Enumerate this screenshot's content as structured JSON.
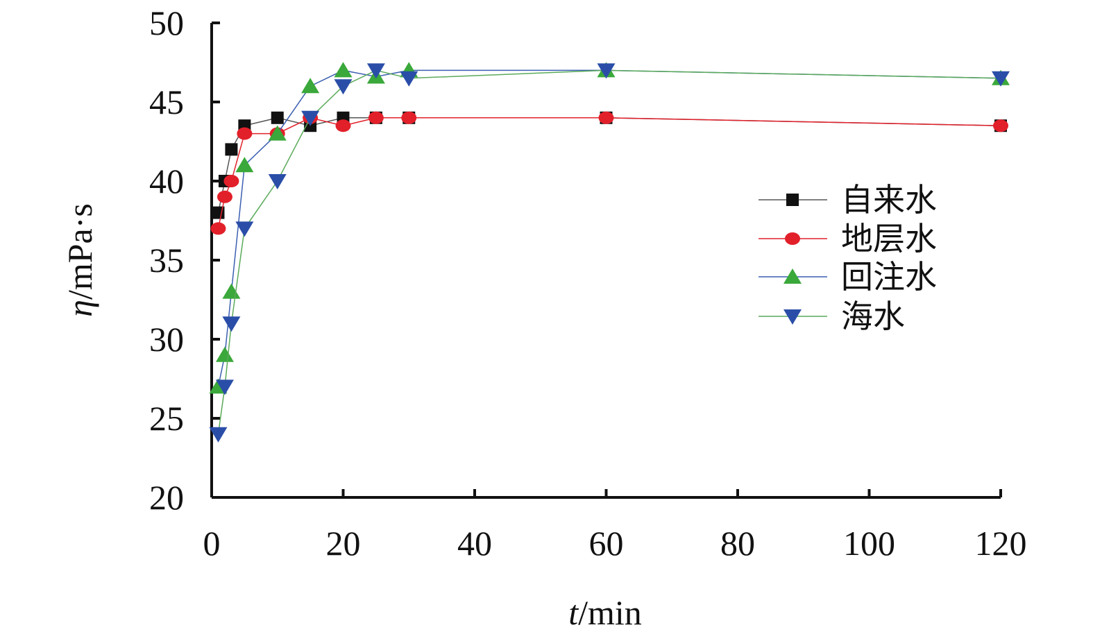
{
  "chart_data": {
    "type": "line",
    "xlabel_var": "t",
    "xlabel_unit": "/min",
    "ylabel_var": "η",
    "ylabel_unit": "/mPa·s",
    "xlim": [
      0,
      120
    ],
    "ylim": [
      20,
      50
    ],
    "xticks": [
      0,
      20,
      40,
      60,
      80,
      100,
      120
    ],
    "yticks": [
      20,
      25,
      30,
      35,
      40,
      45,
      50
    ],
    "grid": false,
    "legend_position": "right",
    "series": [
      {
        "name": "自来水",
        "marker": "square",
        "marker_color": "#111111",
        "line_color": "#555555",
        "points": [
          [
            1,
            38
          ],
          [
            2,
            40
          ],
          [
            3,
            42
          ],
          [
            5,
            43.5
          ],
          [
            10,
            44
          ],
          [
            15,
            43.5
          ],
          [
            20,
            44
          ],
          [
            25,
            44
          ],
          [
            30,
            44
          ],
          [
            60,
            44
          ],
          [
            120,
            43.5
          ]
        ]
      },
      {
        "name": "地层水",
        "marker": "circle",
        "marker_color": "#e2202a",
        "line_color": "#e2202a",
        "points": [
          [
            1,
            37
          ],
          [
            2,
            39
          ],
          [
            3,
            40
          ],
          [
            5,
            43
          ],
          [
            10,
            43
          ],
          [
            15,
            44
          ],
          [
            20,
            43.5
          ],
          [
            25,
            44
          ],
          [
            30,
            44
          ],
          [
            60,
            44
          ],
          [
            120,
            43.5
          ]
        ]
      },
      {
        "name": "回注水",
        "marker": "triangle-up",
        "marker_color": "#3aa83a",
        "line_color": "#3a5fb0",
        "points": [
          [
            1,
            27
          ],
          [
            2,
            29
          ],
          [
            3,
            33
          ],
          [
            5,
            41
          ],
          [
            10,
            43
          ],
          [
            15,
            46
          ],
          [
            20,
            47
          ],
          [
            25,
            46.6
          ],
          [
            30,
            47
          ],
          [
            60,
            47
          ],
          [
            120,
            46.5
          ]
        ]
      },
      {
        "name": "海水",
        "marker": "triangle-down",
        "marker_color": "#2a4ea8",
        "line_color": "#5aaa5a",
        "points": [
          [
            1,
            24
          ],
          [
            2,
            27
          ],
          [
            3,
            31
          ],
          [
            5,
            37
          ],
          [
            10,
            40
          ],
          [
            15,
            44
          ],
          [
            20,
            46
          ],
          [
            25,
            47
          ],
          [
            30,
            46.5
          ],
          [
            60,
            47
          ],
          [
            120,
            46.5
          ]
        ]
      }
    ]
  }
}
